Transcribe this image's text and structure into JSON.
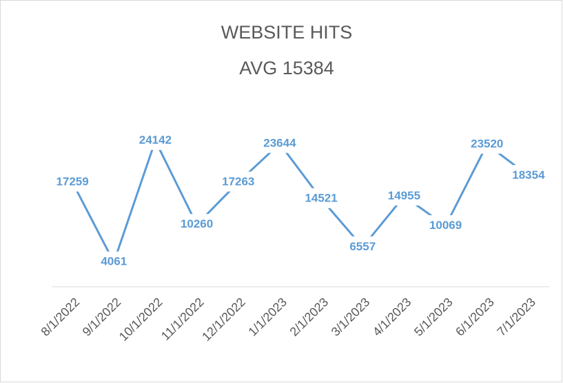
{
  "chart_data": {
    "type": "line",
    "title": [
      "WEBSITE HITS",
      "AVG 15384"
    ],
    "categories": [
      "8/1/2022",
      "9/1/2022",
      "10/1/2022",
      "11/1/2022",
      "12/1/2022",
      "1/1/2023",
      "2/1/2023",
      "3/1/2023",
      "4/1/2023",
      "5/1/2023",
      "6/1/2023",
      "7/1/2023"
    ],
    "series": [
      {
        "name": "Website Hits",
        "color": "#5b9bd5",
        "values": [
          17259,
          4061,
          24142,
          10260,
          17263,
          23644,
          14521,
          6557,
          14955,
          10069,
          23520,
          18354
        ]
      }
    ],
    "ylim": [
      0,
      30000
    ]
  }
}
